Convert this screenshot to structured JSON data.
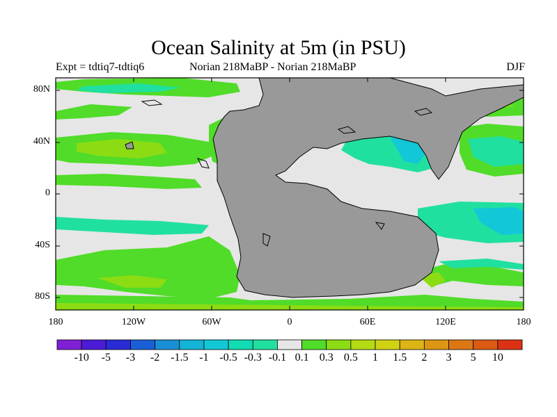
{
  "title": "Ocean Salinity at 5m (in PSU)",
  "subtitle": {
    "left": "Expt = tdtiq7-tdtiq6",
    "center": "Norian   218MaBP - Norian   218MaBP",
    "right": "DJF"
  },
  "axes": {
    "y_labels": [
      "80N",
      "40N",
      "0",
      "40S",
      "80S"
    ],
    "x_labels": [
      "180",
      "120W",
      "60W",
      "0",
      "60E",
      "120E",
      "180"
    ]
  },
  "colors": {
    "land": "#999999",
    "neutral": "#e6e6e6",
    "frame": "#000000"
  },
  "colorbar": {
    "colors": [
      "#7f1fd6",
      "#4b1bd6",
      "#2a2ad6",
      "#1a5fd6",
      "#1a8fd6",
      "#14b4d6",
      "#12c8d6",
      "#12dcb4",
      "#20e0a0",
      "#e6e6e6",
      "#50dc28",
      "#8cdc14",
      "#b4dc14",
      "#d2d214",
      "#dcb414",
      "#dc9614",
      "#dc7814",
      "#dc5a14",
      "#dc3214"
    ],
    "labels": [
      "-10",
      "-5",
      "-3",
      "-2",
      "-1.5",
      "-1",
      "-0.5",
      "-0.3",
      "-0.1",
      "0.1",
      "0.3",
      "0.5",
      "1",
      "1.5",
      "2",
      "3",
      "5",
      "10"
    ]
  }
}
